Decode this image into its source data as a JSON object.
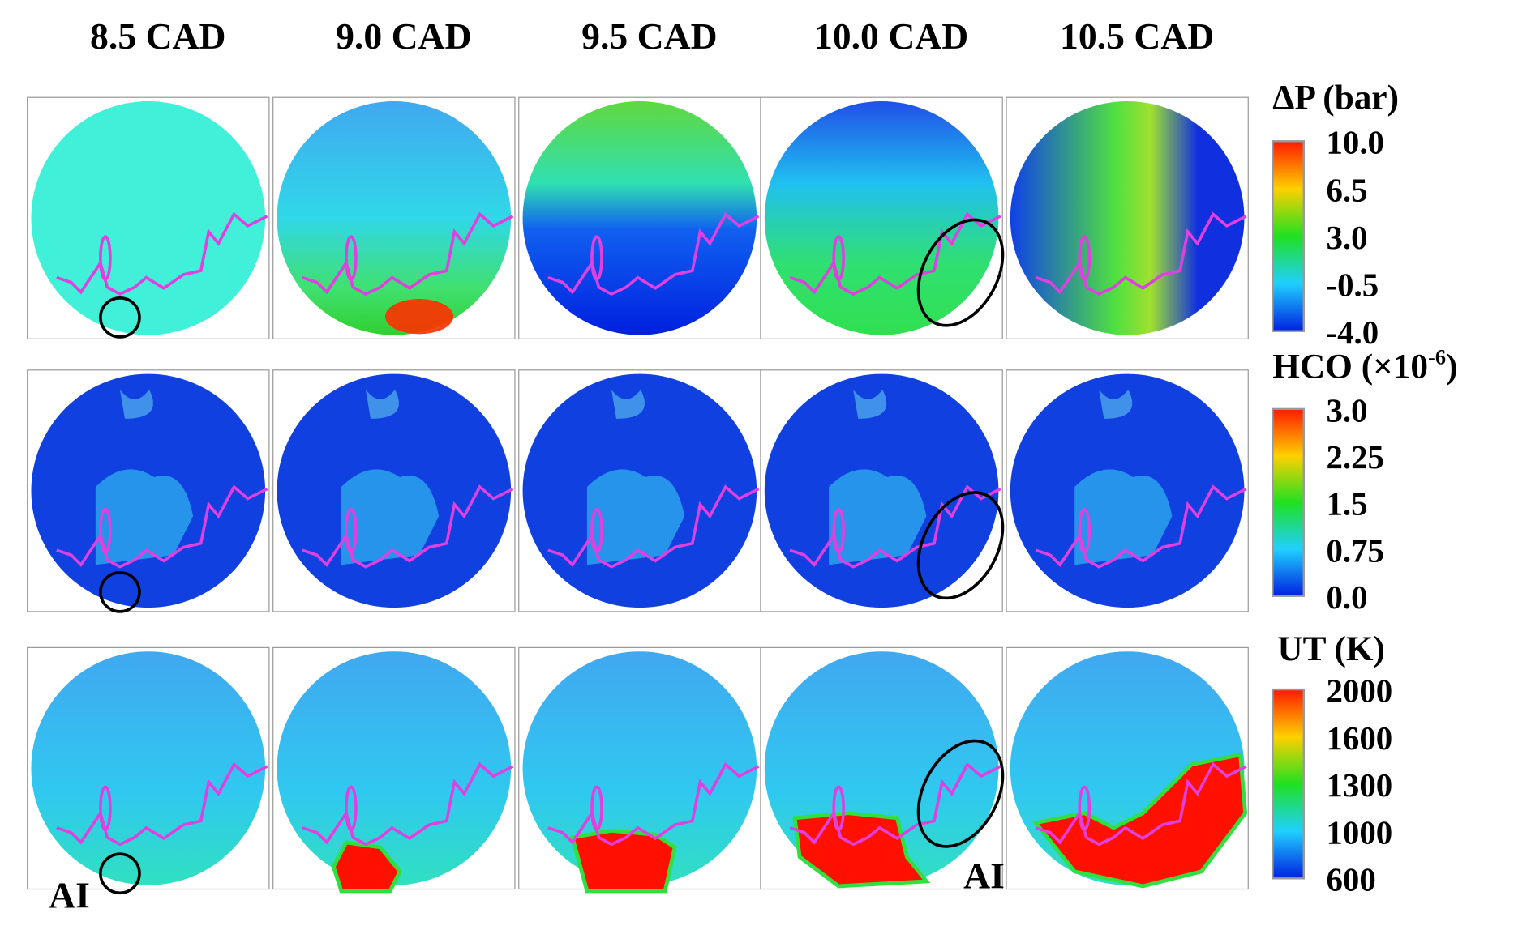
{
  "columns": [
    "8.5 CAD",
    "9.0 CAD",
    "9.5 CAD",
    "10.0 CAD",
    "10.5 CAD"
  ],
  "rows": [
    {
      "title": "ΔP (bar)",
      "ticks": [
        "10.0",
        "6.5",
        "3.0",
        "-0.5",
        "-4.0"
      ]
    },
    {
      "title": "HCO (×10",
      "title_sup": "-6",
      "title_end": ")",
      "ticks": [
        "3.0",
        "2.25",
        "1.5",
        "0.75",
        "0.0"
      ]
    },
    {
      "title": "UT (K)",
      "ticks": [
        "2000",
        "1600",
        "1300",
        "1000",
        "600"
      ]
    }
  ],
  "annotations": [
    "AI",
    "AI"
  ]
}
